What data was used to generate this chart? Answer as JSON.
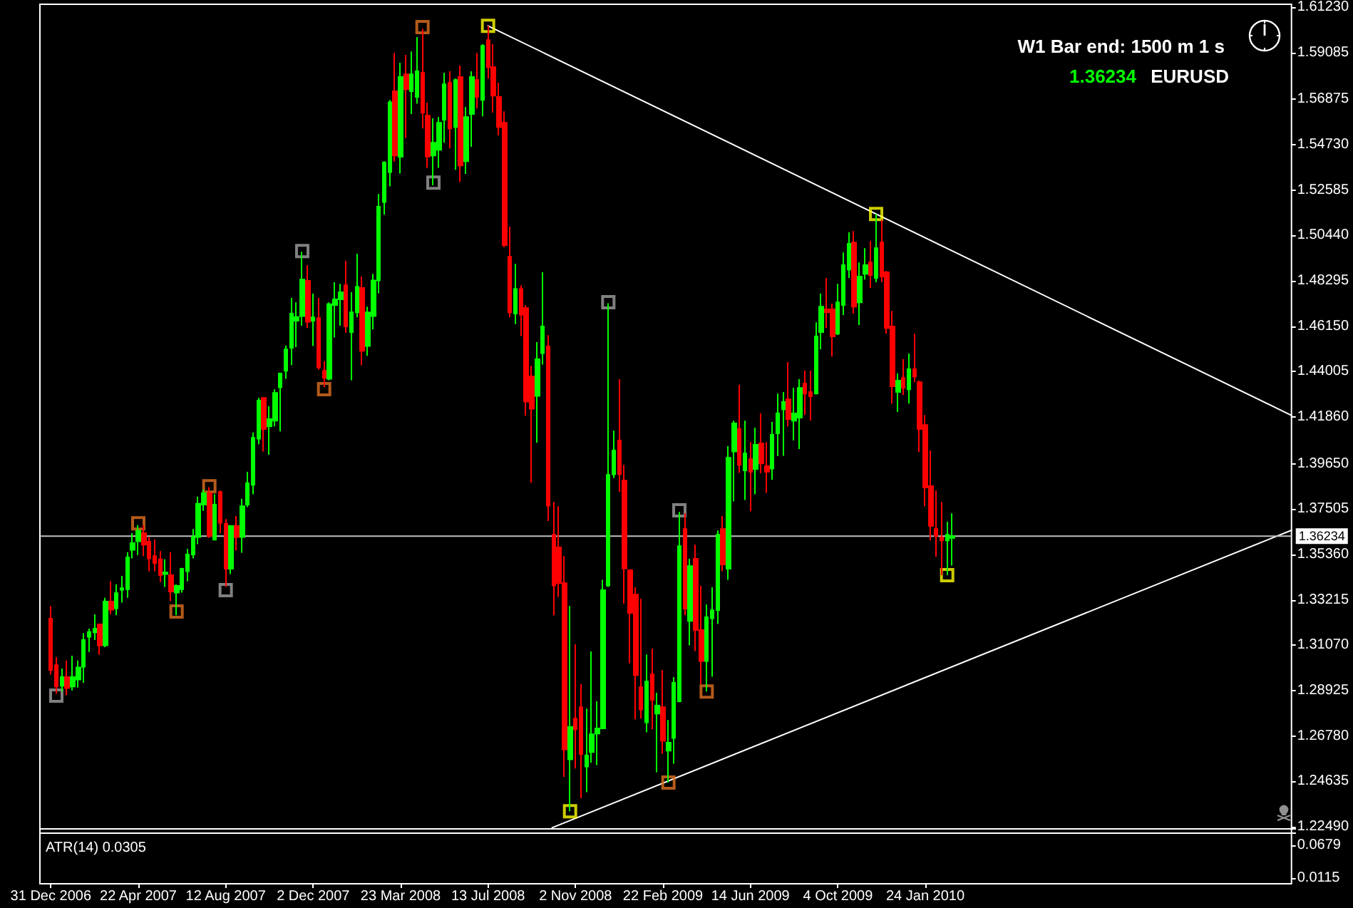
{
  "chart_data": {
    "type": "candlestick",
    "title": "W1 Bar end: 1500 m 1 s",
    "annotations": [
      "1.36234",
      "EURUSD",
      "ATR(14) 0.0305"
    ],
    "y2lim": [
      0.0017,
      1.5146
    ],
    "y2ticks": [
      0.0115,
      0.0679
    ],
    "xlim": [
      "2006-12-17",
      "2011-05-08"
    ],
    "xticks": [
      {
        "value": "2006-12-31",
        "label": "31 Dec 2006"
      },
      {
        "value": "2007-04-22",
        "label": "22 Apr 2007"
      },
      {
        "value": "2007-08-12",
        "label": "12 Aug 2007"
      },
      {
        "value": "2007-12-02",
        "label": "2 Dec 2007"
      },
      {
        "value": "2008-03-23",
        "label": "23 Mar 2008"
      },
      {
        "value": "2008-07-13",
        "label": "13 Jul 2008"
      },
      {
        "value": "2008-11-02",
        "label": "2 Nov 2008"
      },
      {
        "value": "2009-02-22",
        "label": "22 Feb 2009"
      },
      {
        "value": "2009-06-14",
        "label": "14 Jun 2009"
      },
      {
        "value": "2009-10-04",
        "label": "4 Oct 2009"
      },
      {
        "value": "2010-01-24",
        "label": "24 Jan 2010"
      }
    ],
    "ylim": [
      1.198,
      1.6137
    ],
    "yticks": [
      {
        "value": 1.2249,
        "label": "1.22490"
      },
      {
        "value": 1.24635,
        "label": "1.24635"
      },
      {
        "value": 1.2678,
        "label": "1.26780"
      },
      {
        "value": 1.28925,
        "label": "1.28925"
      },
      {
        "value": 1.3107,
        "label": "1.31070"
      },
      {
        "value": 1.33215,
        "label": "1.33215"
      },
      {
        "value": 1.3536,
        "label": "1.35360"
      },
      {
        "value": 1.37505,
        "label": "1.37505"
      },
      {
        "value": 1.3965,
        "label": "1.39650"
      },
      {
        "value": 1.4186,
        "label": "1.41860"
      },
      {
        "value": 1.44005,
        "label": "1.44005"
      },
      {
        "value": 1.4615,
        "label": "1.46150"
      },
      {
        "value": 1.48295,
        "label": "1.48295"
      },
      {
        "value": 1.5044,
        "label": "1.50440"
      },
      {
        "value": 1.52585,
        "label": "1.52585"
      },
      {
        "value": 1.5473,
        "label": "1.54730"
      },
      {
        "value": 1.56875,
        "label": "1.56875"
      },
      {
        "value": 1.59085,
        "label": "1.59085"
      },
      {
        "value": 1.6123,
        "label": "1.61230"
      }
    ],
    "ref_lines": [
      {
        "axis": "y",
        "value": 1.36234,
        "label": "1.36234",
        "color": "#c0c0c0"
      }
    ],
    "series": [
      {
        "type": "candlestick",
        "colors": [
          "#ff0000",
          "#ff0000",
          "#00ff00",
          "#ff0000",
          "#00ff00",
          "#00ff00",
          "#00ff00",
          "#00ff00",
          "#00ff00",
          "#ff0000",
          "#00ff00",
          "#ff0000",
          "#00ff00",
          "#00ff00",
          "#00ff00",
          "#00ff00",
          "#00ff00",
          "#ff0000",
          "#ff0000",
          "#ff0000",
          "#ff0000",
          "#00ff00",
          "#ff0000",
          "#00ff00",
          "#00ff00",
          "#00ff00",
          "#00ff00",
          "#00ff00",
          "#00ff00",
          "#ff0000",
          "#00ff00",
          "#ff0000",
          "#ff0000",
          "#00ff00",
          "#ff0000",
          "#00ff00",
          "#00ff00",
          "#00ff00",
          "#00ff00",
          "#ff0000",
          "#00ff00",
          "#00ff00",
          "#00ff00",
          "#00ff00",
          "#00ff00",
          "#00ff00",
          "#00ff00",
          "#ff0000",
          "#00ff00",
          "#ff0000",
          "#ff0000",
          "#00ff00",
          "#00ff00",
          "#00ff00",
          "#ff0000",
          "#00ff00",
          "#00ff00",
          "#ff0000",
          "#00ff00",
          "#00ff00",
          "#00ff00",
          "#00ff00",
          "#00ff00",
          "#ff0000",
          "#00ff00",
          "#ff0000",
          "#00ff00",
          "#00ff00",
          "#ff0000",
          "#ff0000",
          "#00ff00",
          "#00ff00",
          "#00ff00",
          "#ff0000",
          "#00ff00",
          "#ff0000",
          "#00ff00",
          "#00ff00",
          "#ff0000",
          "#00ff00",
          "#ff0000",
          "#ff0000",
          "#ff0000",
          "#ff0000",
          "#ff0000",
          "#00ff00",
          "#ff0000",
          "#ff0000",
          "#ff0000",
          "#00ff00",
          "#00ff00",
          "#ff0000",
          "#ff0000",
          "#ff0000",
          "#ff0000",
          "#00ff00",
          "#ff0000",
          "#ff0000",
          "#00ff00",
          "#00ff00",
          "#00ff00",
          "#00ff00",
          "#00ff00",
          "#00ff00",
          "#ff0000",
          "#ff0000",
          "#ff0000",
          "#ff0000",
          "#ff0000",
          "#00ff00",
          "#ff0000",
          "#00ff00",
          "#ff0000",
          "#00ff00",
          "#00ff00",
          "#00ff00",
          "#ff0000",
          "#00ff00",
          "#ff0000",
          "#ff0000",
          "#00ff00",
          "#00ff00",
          "#00ff00",
          "#ff0000",
          "#00ff00",
          "#00ff00",
          "#ff0000",
          "#00ff00",
          "#ff0000",
          "#00ff00",
          "#ff0000",
          "#ff0000",
          "#00ff00",
          "#00ff00",
          "#00ff00",
          "#ff0000",
          "#00ff00",
          "#00ff00",
          "#ff0000",
          "#ff0000",
          "#00ff00",
          "#00ff00",
          "#ff0000",
          "#ff0000",
          "#00ff00",
          "#00ff00",
          "#00ff00",
          "#ff0000",
          "#00ff00",
          "#00ff00",
          "#ff0000",
          "#00ff00",
          "#ff0000",
          "#ff0000",
          "#ff0000",
          "#00ff00",
          "#ff0000",
          "#00ff00",
          "#ff0000",
          "#ff0000",
          "#ff0000",
          "#ff0000",
          "#ff0000",
          "#ff0000",
          "#00ff00",
          "#00ff00"
        ],
        "x": [
          "2006-12-31",
          "2007-01-07",
          "2007-01-14",
          "2007-01-21",
          "2007-01-28",
          "2007-02-04",
          "2007-02-11",
          "2007-02-18",
          "2007-02-25",
          "2007-03-04",
          "2007-03-11",
          "2007-03-18",
          "2007-03-25",
          "2007-04-01",
          "2007-04-08",
          "2007-04-15",
          "2007-04-22",
          "2007-04-29",
          "2007-05-06",
          "2007-05-13",
          "2007-05-20",
          "2007-05-27",
          "2007-06-03",
          "2007-06-10",
          "2007-06-17",
          "2007-06-24",
          "2007-07-01",
          "2007-07-08",
          "2007-07-15",
          "2007-07-22",
          "2007-07-29",
          "2007-08-05",
          "2007-08-12",
          "2007-08-19",
          "2007-08-26",
          "2007-09-02",
          "2007-09-09",
          "2007-09-16",
          "2007-09-23",
          "2007-09-30",
          "2007-10-07",
          "2007-10-14",
          "2007-10-21",
          "2007-10-28",
          "2007-11-04",
          "2007-11-11",
          "2007-11-18",
          "2007-11-25",
          "2007-12-02",
          "2007-12-09",
          "2007-12-16",
          "2007-12-23",
          "2007-12-30",
          "2008-01-06",
          "2008-01-13",
          "2008-01-20",
          "2008-01-27",
          "2008-02-03",
          "2008-02-10",
          "2008-02-17",
          "2008-02-24",
          "2008-03-02",
          "2008-03-09",
          "2008-03-16",
          "2008-03-23",
          "2008-03-30",
          "2008-04-06",
          "2008-04-13",
          "2008-04-20",
          "2008-04-27",
          "2008-05-04",
          "2008-05-11",
          "2008-05-18",
          "2008-05-25",
          "2008-06-01",
          "2008-06-08",
          "2008-06-15",
          "2008-06-22",
          "2008-06-29",
          "2008-07-06",
          "2008-07-13",
          "2008-07-20",
          "2008-07-27",
          "2008-08-03",
          "2008-08-10",
          "2008-08-17",
          "2008-08-24",
          "2008-08-31",
          "2008-09-07",
          "2008-09-14",
          "2008-09-21",
          "2008-09-28",
          "2008-10-05",
          "2008-10-12",
          "2008-10-19",
          "2008-10-26",
          "2008-11-02",
          "2008-11-09",
          "2008-11-16",
          "2008-11-23",
          "2008-11-30",
          "2008-12-07",
          "2008-12-14",
          "2008-12-21",
          "2008-12-28",
          "2009-01-04",
          "2009-01-11",
          "2009-01-18",
          "2009-01-25",
          "2009-02-01",
          "2009-02-08",
          "2009-02-15",
          "2009-02-22",
          "2009-03-01",
          "2009-03-08",
          "2009-03-15",
          "2009-03-22",
          "2009-03-29",
          "2009-04-05",
          "2009-04-12",
          "2009-04-19",
          "2009-04-26",
          "2009-05-03",
          "2009-05-10",
          "2009-05-17",
          "2009-05-24",
          "2009-05-31",
          "2009-06-07",
          "2009-06-14",
          "2009-06-21",
          "2009-06-28",
          "2009-07-05",
          "2009-07-12",
          "2009-07-19",
          "2009-07-26",
          "2009-08-02",
          "2009-08-09",
          "2009-08-16",
          "2009-08-23",
          "2009-08-30",
          "2009-09-06",
          "2009-09-13",
          "2009-09-20",
          "2009-09-27",
          "2009-10-04",
          "2009-10-11",
          "2009-10-18",
          "2009-10-25",
          "2009-11-01",
          "2009-11-08",
          "2009-11-15",
          "2009-11-22",
          "2009-11-29",
          "2009-12-06",
          "2009-12-13",
          "2009-12-20",
          "2009-12-27",
          "2010-01-03",
          "2010-01-10",
          "2010-01-17",
          "2010-01-24",
          "2010-01-31",
          "2010-02-07",
          "2010-02-14",
          "2010-02-21",
          "2010-02-28"
        ],
        "ohlc": [
          [
            1.3233,
            1.3293,
            1.2968,
            1.299
          ],
          [
            1.3013,
            1.3051,
            1.2878,
            1.2912
          ],
          [
            1.2916,
            1.2997,
            1.2889,
            1.2957
          ],
          [
            1.2957,
            1.3035,
            1.2871,
            1.2905
          ],
          [
            1.2912,
            1.3058,
            1.2894,
            1.2957
          ],
          [
            1.2945,
            1.3035,
            1.2907,
            1.3002
          ],
          [
            1.3006,
            1.3165,
            1.293,
            1.3132
          ],
          [
            1.3147,
            1.3186,
            1.3076,
            1.317
          ],
          [
            1.3168,
            1.3253,
            1.3132,
            1.3186
          ],
          [
            1.3206,
            1.3206,
            1.3062,
            1.3107
          ],
          [
            1.3107,
            1.3332,
            1.3098,
            1.3314
          ],
          [
            1.3314,
            1.341,
            1.3253,
            1.3275
          ],
          [
            1.3282,
            1.3395,
            1.3249,
            1.3354
          ],
          [
            1.337,
            1.3435,
            1.3309,
            1.3377
          ],
          [
            1.3372,
            1.3547,
            1.3332,
            1.3523
          ],
          [
            1.3558,
            1.3637,
            1.3518,
            1.359
          ],
          [
            1.3599,
            1.3675,
            1.3534,
            1.3648
          ],
          [
            1.3637,
            1.3675,
            1.3529,
            1.3583
          ],
          [
            1.3597,
            1.3619,
            1.3457,
            1.3518
          ],
          [
            1.3529,
            1.3608,
            1.3457,
            1.3496
          ],
          [
            1.3514,
            1.3552,
            1.3406,
            1.3439
          ],
          [
            1.3444,
            1.3514,
            1.3383,
            1.3451
          ],
          [
            1.3439,
            1.3547,
            1.3316,
            1.3361
          ],
          [
            1.3356,
            1.3395,
            1.3249,
            1.3388
          ],
          [
            1.3372,
            1.3473,
            1.3356,
            1.3469
          ],
          [
            1.3457,
            1.3563,
            1.341,
            1.3536
          ],
          [
            1.3536,
            1.3657,
            1.3518,
            1.3619
          ],
          [
            1.3619,
            1.381,
            1.3585,
            1.3776
          ],
          [
            1.3772,
            1.3844,
            1.3743,
            1.3826
          ],
          [
            1.3826,
            1.3855,
            1.3615,
            1.3624
          ],
          [
            1.3606,
            1.3821,
            1.3606,
            1.3772
          ],
          [
            1.3832,
            1.3839,
            1.3637,
            1.3686
          ],
          [
            1.3682,
            1.3704,
            1.3383,
            1.3469
          ],
          [
            1.3469,
            1.3675,
            1.3444,
            1.3671
          ],
          [
            1.3671,
            1.3718,
            1.3556,
            1.3619
          ],
          [
            1.3619,
            1.3799,
            1.3545,
            1.3765
          ],
          [
            1.3772,
            1.3927,
            1.376,
            1.3873
          ],
          [
            1.3866,
            1.4113,
            1.3821,
            1.4088
          ],
          [
            1.4084,
            1.4277,
            1.4057,
            1.4264
          ],
          [
            1.4277,
            1.4277,
            1.4023,
            1.4129
          ],
          [
            1.4142,
            1.4237,
            1.4008,
            1.4176
          ],
          [
            1.4169,
            1.4317,
            1.4142,
            1.43
          ],
          [
            1.4326,
            1.4392,
            1.4118,
            1.4392
          ],
          [
            1.4405,
            1.4524,
            1.4367,
            1.4506
          ],
          [
            1.4513,
            1.4749,
            1.4432,
            1.4675
          ],
          [
            1.4641,
            1.4728,
            1.4517,
            1.4659
          ],
          [
            1.4663,
            1.4967,
            1.4618,
            1.4836
          ],
          [
            1.483,
            1.4904,
            1.4607,
            1.4636
          ],
          [
            1.4641,
            1.4769,
            1.4522,
            1.4657
          ],
          [
            1.4654,
            1.4749,
            1.441,
            1.4421
          ],
          [
            1.4405,
            1.445,
            1.4327,
            1.4371
          ],
          [
            1.4367,
            1.4728,
            1.436,
            1.472
          ],
          [
            1.4715,
            1.4823,
            1.4562,
            1.4742
          ],
          [
            1.4742,
            1.4816,
            1.4618,
            1.4776
          ],
          [
            1.4809,
            1.4924,
            1.4585,
            1.4614
          ],
          [
            1.4587,
            1.4776,
            1.436,
            1.4681
          ],
          [
            1.4681,
            1.4958,
            1.4657,
            1.4802
          ],
          [
            1.4796,
            1.485,
            1.4432,
            1.4499
          ],
          [
            1.4522,
            1.4708,
            1.4475,
            1.4681
          ],
          [
            1.4663,
            1.4863,
            1.46,
            1.4832
          ],
          [
            1.4832,
            1.524,
            1.4771,
            1.518
          ],
          [
            1.5202,
            1.5395,
            1.5142,
            1.5389
          ],
          [
            1.5344,
            1.5685,
            1.5276,
            1.5674
          ],
          [
            1.5726,
            1.5907,
            1.5393,
            1.5422
          ],
          [
            1.5416,
            1.586,
            1.5337,
            1.5793
          ],
          [
            1.5806,
            1.5898,
            1.5505,
            1.5735
          ],
          [
            1.5726,
            1.5914,
            1.5618,
            1.5806
          ],
          [
            1.5699,
            1.5982,
            1.5667,
            1.582
          ],
          [
            1.5813,
            1.6022,
            1.555,
            1.5625
          ],
          [
            1.5611,
            1.5672,
            1.5364,
            1.5418
          ],
          [
            1.5422,
            1.5598,
            1.5281,
            1.5483
          ],
          [
            1.5449,
            1.5604,
            1.5364,
            1.5577
          ],
          [
            1.5591,
            1.5813,
            1.5483,
            1.5759
          ],
          [
            1.5766,
            1.582,
            1.5456,
            1.555
          ],
          [
            1.5557,
            1.5786,
            1.5355,
            1.5779
          ],
          [
            1.5793,
            1.5847,
            1.5297,
            1.5375
          ],
          [
            1.5395,
            1.5651,
            1.5335,
            1.5604
          ],
          [
            1.5618,
            1.582,
            1.5463,
            1.5793
          ],
          [
            1.5779,
            1.5907,
            1.5645,
            1.5699
          ],
          [
            1.5685,
            1.5948,
            1.5607,
            1.5941
          ],
          [
            1.5968,
            1.6035,
            1.5786,
            1.584
          ],
          [
            1.584,
            1.5948,
            1.5625,
            1.5705
          ],
          [
            1.5699,
            1.5766,
            1.5517,
            1.5557
          ],
          [
            1.5577,
            1.5631,
            1.4989,
            1.4998
          ],
          [
            1.4944,
            1.5086,
            1.4657,
            1.4681
          ],
          [
            1.4675,
            1.491,
            1.4625,
            1.4791
          ],
          [
            1.4791,
            1.4809,
            1.4569,
            1.467
          ],
          [
            1.4701,
            1.4715,
            1.4192,
            1.4259
          ],
          [
            1.4378,
            1.4428,
            1.3875,
            1.4225
          ],
          [
            1.4286,
            1.454,
            1.4064,
            1.4459
          ],
          [
            1.4488,
            1.487,
            1.4434,
            1.4614
          ],
          [
            1.452,
            1.4573,
            1.3695,
            1.3767
          ],
          [
            1.363,
            1.3785,
            1.3249,
            1.339
          ],
          [
            1.357,
            1.3765,
            1.3336,
            1.3401
          ],
          [
            1.3401,
            1.3529,
            1.2485,
            1.2615
          ],
          [
            1.2568,
            1.3293,
            1.2323,
            1.2721
          ],
          [
            1.2761,
            1.3112,
            1.2525,
            1.271
          ],
          [
            1.2815,
            1.2923,
            1.2384,
            1.2593
          ],
          [
            1.2534,
            1.2808,
            1.2413,
            1.2586
          ],
          [
            1.2602,
            1.3078,
            1.2552,
            1.2687
          ],
          [
            1.269,
            1.2842,
            1.2541,
            1.2714
          ],
          [
            1.2714,
            1.3417,
            1.271,
            1.3368
          ],
          [
            1.339,
            1.4724,
            1.3383,
            1.3913
          ],
          [
            1.3915,
            1.4122,
            1.3898,
            1.4028
          ],
          [
            1.4075,
            1.4365,
            1.3832,
            1.3915
          ],
          [
            1.3886,
            1.396,
            1.3305,
            1.3471
          ],
          [
            1.3462,
            1.3462,
            1.3022,
            1.326
          ],
          [
            1.3347,
            1.3381,
            1.2757,
            1.2966
          ],
          [
            1.2909,
            1.3327,
            1.2761,
            1.2804
          ],
          [
            1.2743,
            1.3064,
            1.2696,
            1.2936
          ],
          [
            1.297,
            1.3091,
            1.271,
            1.2849
          ],
          [
            1.2784,
            1.2883,
            1.2507,
            1.2822
          ],
          [
            1.2815,
            1.299,
            1.2595,
            1.2656
          ],
          [
            1.2609,
            1.2754,
            1.2458,
            1.2647
          ],
          [
            1.2669,
            1.2957,
            1.2548,
            1.293
          ],
          [
            1.2842,
            1.3738,
            1.2838,
            1.3576
          ],
          [
            1.3657,
            1.3731,
            1.3249,
            1.328
          ],
          [
            1.3222,
            1.3516,
            1.3107,
            1.3482
          ],
          [
            1.3516,
            1.3583,
            1.308,
            1.3179
          ],
          [
            1.3179,
            1.3388,
            1.2923,
            1.3033
          ],
          [
            1.3033,
            1.33,
            1.2889,
            1.324
          ],
          [
            1.3235,
            1.3381,
            1.2959,
            1.3273
          ],
          [
            1.3273,
            1.365,
            1.3208,
            1.363
          ],
          [
            1.3657,
            1.3718,
            1.3457,
            1.3489
          ],
          [
            1.3469,
            1.4048,
            1.3417,
            1.3994
          ],
          [
            1.4023,
            1.4169,
            1.3787,
            1.4156
          ],
          [
            1.4129,
            1.4338,
            1.3922,
            1.396
          ],
          [
            1.3934,
            1.4169,
            1.3794,
            1.4014
          ],
          [
            1.3987,
            1.4068,
            1.374,
            1.3927
          ],
          [
            1.394,
            1.4136,
            1.3821,
            1.4055
          ],
          [
            1.4061,
            1.4203,
            1.392,
            1.3967
          ],
          [
            1.3954,
            1.4068,
            1.3828,
            1.3927
          ],
          [
            1.3942,
            1.4163,
            1.3889,
            1.4102
          ],
          [
            1.4109,
            1.4297,
            1.4001,
            1.4203
          ],
          [
            1.4223,
            1.4304,
            1.4003,
            1.4257
          ],
          [
            1.427,
            1.4446,
            1.4142,
            1.4176
          ],
          [
            1.4169,
            1.4324,
            1.4075,
            1.4203
          ],
          [
            1.4183,
            1.4365,
            1.4035,
            1.4324
          ],
          [
            1.4344,
            1.4405,
            1.4196,
            1.4297
          ],
          [
            1.4304,
            1.4405,
            1.4169,
            1.4284
          ],
          [
            1.4297,
            1.4634,
            1.4297,
            1.4567
          ],
          [
            1.4587,
            1.4769,
            1.4506,
            1.4708
          ],
          [
            1.4695,
            1.4843,
            1.4607,
            1.4681
          ],
          [
            1.4695,
            1.4722,
            1.4472,
            1.4567
          ],
          [
            1.458,
            1.4816,
            1.4574,
            1.4728
          ],
          [
            1.4715,
            1.4964,
            1.4668,
            1.4904
          ],
          [
            1.4883,
            1.5059,
            1.4843,
            1.5005
          ],
          [
            1.5011,
            1.5065,
            1.4675,
            1.4708
          ],
          [
            1.4728,
            1.4917,
            1.4621,
            1.485
          ],
          [
            1.4863,
            1.4984,
            1.4836,
            1.4904
          ],
          [
            1.4917,
            1.5018,
            1.4796,
            1.4857
          ],
          [
            1.4843,
            1.5146,
            1.4823,
            1.4984
          ],
          [
            1.5011,
            1.5119,
            1.4823,
            1.485
          ],
          [
            1.487,
            1.4877,
            1.458,
            1.4607
          ],
          [
            1.4614,
            1.4688,
            1.425,
            1.4331
          ],
          [
            1.4304,
            1.4392,
            1.421,
            1.4358
          ],
          [
            1.4371,
            1.4459,
            1.429,
            1.4324
          ],
          [
            1.4317,
            1.4486,
            1.425,
            1.4412
          ],
          [
            1.4412,
            1.458,
            1.4351,
            1.4378
          ],
          [
            1.4351,
            1.4358,
            1.4021,
            1.4129
          ],
          [
            1.4149,
            1.4196,
            1.3765,
            1.3853
          ],
          [
            1.386,
            1.4028,
            1.3603,
            1.3671
          ],
          [
            1.3657,
            1.3839,
            1.3525,
            1.3624
          ],
          [
            1.3617,
            1.3785,
            1.3439,
            1.3603
          ],
          [
            1.3603,
            1.3691,
            1.3439,
            1.363
          ],
          [
            1.3615,
            1.3731,
            1.3484,
            1.36234
          ]
        ]
      },
      {
        "type": "line",
        "color": "#ffffff",
        "line_style": "solid",
        "x": [
          "2008-07-13",
          "2011-05-08"
        ],
        "values": [
          1.6035,
          1.4194
        ]
      },
      {
        "type": "line",
        "color": "#ffffff",
        "line_style": "solid",
        "x": [
          "2008-10-03",
          "2011-05-08"
        ],
        "values": [
          1.2245,
          1.3651
        ]
      },
      {
        "type": "scatter",
        "marker": "square",
        "color": "#ffff00",
        "x": [
          "2008-07-13",
          "2008-10-26",
          "2009-11-22",
          "2010-02-21"
        ],
        "values": [
          1.6035,
          1.2323,
          1.5146,
          1.3439
        ]
      },
      {
        "type": "scatter",
        "marker": "square",
        "color": "#e07020",
        "x": [
          "2007-04-22",
          "2007-06-10",
          "2007-07-22",
          "2007-12-16",
          "2008-04-20",
          "2009-03-01",
          "2009-04-19"
        ],
        "values": [
          1.3684,
          1.3267,
          1.3859,
          1.4318,
          1.6029,
          1.2458,
          1.2889
        ]
      },
      {
        "type": "scatter",
        "marker": "square",
        "color": "#a0a0a0",
        "x": [
          "2007-01-07",
          "2007-08-12",
          "2007-11-18",
          "2008-05-04",
          "2008-12-14",
          "2009-03-15"
        ],
        "values": [
          1.2869,
          1.3368,
          1.4971,
          1.5294,
          1.4729,
          1.3745
        ]
      }
    ]
  }
}
